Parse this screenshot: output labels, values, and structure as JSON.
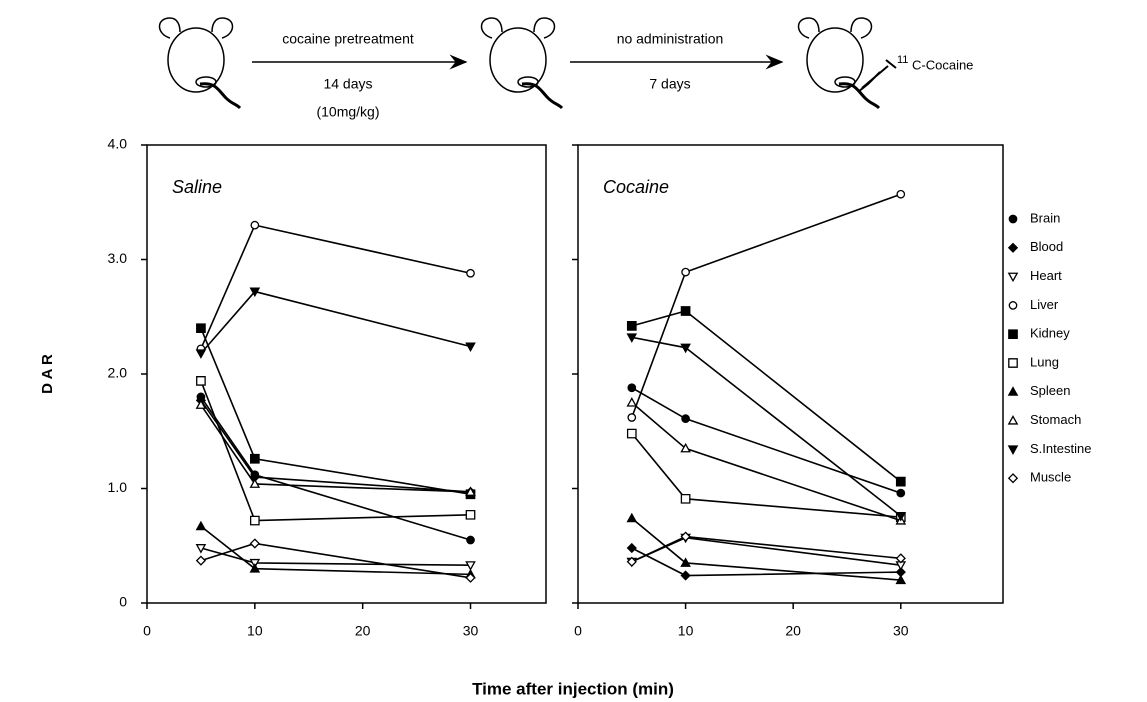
{
  "schematic": {
    "step1": [
      "cocaine pretreatment",
      "14 days",
      "(10mg/kg)"
    ],
    "step2": [
      "no administration",
      "7 days"
    ],
    "tracer_sup": "11",
    "tracer": "C-Cocaine"
  },
  "xlabel": "Time after injection (min)",
  "ylabel": "D A R",
  "chart_data": [
    {
      "type": "line",
      "title": "Saline",
      "x": [
        5,
        10,
        30
      ],
      "xlim": [
        0,
        37
      ],
      "xticks": [
        0,
        10,
        20,
        30
      ],
      "ylim": [
        0,
        4
      ],
      "yticks": [
        0,
        {
          "value": 1,
          "label": "1.0"
        },
        {
          "value": 2,
          "label": "2.0"
        },
        {
          "value": 3,
          "label": "3.0"
        },
        {
          "value": 4,
          "label": "4.0"
        }
      ],
      "series": [
        {
          "name": "Brain",
          "marker": "circle-filled",
          "color": "#000000",
          "values": [
            1.8,
            1.12,
            0.55
          ]
        },
        {
          "name": "Blood",
          "marker": "diamond-filled",
          "color": "#000000",
          "values": [
            1.77,
            1.1,
            0.97
          ]
        },
        {
          "name": "Heart",
          "marker": "triangle-down-open",
          "color": "#000000",
          "values": [
            0.48,
            0.35,
            0.33
          ]
        },
        {
          "name": "Liver",
          "marker": "circle-open",
          "color": "#000000",
          "values": [
            2.22,
            3.3,
            2.88
          ]
        },
        {
          "name": "Kidney",
          "marker": "square-filled",
          "color": "#000000",
          "values": [
            2.4,
            1.26,
            0.95
          ]
        },
        {
          "name": "Lung",
          "marker": "square-open",
          "color": "#000000",
          "values": [
            1.94,
            0.72,
            0.77
          ]
        },
        {
          "name": "Spleen",
          "marker": "triangle-up-filled",
          "color": "#000000",
          "values": [
            0.67,
            0.3,
            0.25
          ]
        },
        {
          "name": "Stomach",
          "marker": "triangle-up-open",
          "color": "#000000",
          "values": [
            1.73,
            1.04,
            0.97
          ]
        },
        {
          "name": "S.Intestine",
          "marker": "triangle-down-filled",
          "color": "#000000",
          "values": [
            2.18,
            2.72,
            2.24
          ]
        },
        {
          "name": "Muscle",
          "marker": "diamond-open",
          "color": "#000000",
          "values": [
            0.37,
            0.52,
            0.22
          ]
        }
      ]
    },
    {
      "type": "line",
      "title": "Cocaine",
      "x": [
        5,
        10,
        30
      ],
      "xlim": [
        0,
        39.5
      ],
      "xticks": [
        0,
        10,
        20,
        30
      ],
      "ylim": [
        0,
        4
      ],
      "yticks": [
        0,
        1,
        2,
        3,
        4
      ],
      "series": [
        {
          "marker": "circle-filled",
          "color": "#000000",
          "values": [
            1.88,
            1.61,
            0.96
          ]
        },
        {
          "marker": "diamond-filled",
          "color": "#000000",
          "values": [
            0.48,
            0.24,
            0.27
          ]
        },
        {
          "marker": "triangle-down-open",
          "color": "#000000",
          "values": [
            0.36,
            0.57,
            0.33
          ]
        },
        {
          "marker": "circle-open",
          "color": "#000000",
          "values": [
            1.62,
            2.89,
            3.57
          ]
        },
        {
          "marker": "square-filled",
          "color": "#000000",
          "values": [
            2.42,
            2.55,
            1.06
          ]
        },
        {
          "marker": "square-open",
          "color": "#000000",
          "values": [
            1.48,
            0.91,
            0.75
          ]
        },
        {
          "marker": "triangle-up-filled",
          "color": "#000000",
          "values": [
            0.74,
            0.35,
            0.2
          ]
        },
        {
          "marker": "triangle-up-open",
          "color": "#000000",
          "values": [
            1.75,
            1.35,
            0.72
          ]
        },
        {
          "marker": "triangle-down-filled",
          "color": "#000000",
          "values": [
            2.32,
            2.23,
            0.76
          ]
        },
        {
          "marker": "diamond-open",
          "color": "#000000",
          "values": [
            0.36,
            0.58,
            0.39
          ]
        }
      ]
    }
  ]
}
